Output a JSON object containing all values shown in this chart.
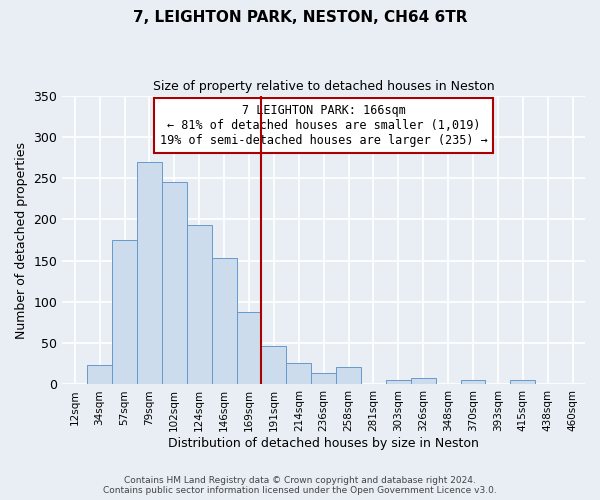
{
  "title": "7, LEIGHTON PARK, NESTON, CH64 6TR",
  "subtitle": "Size of property relative to detached houses in Neston",
  "xlabel": "Distribution of detached houses by size in Neston",
  "ylabel": "Number of detached properties",
  "bar_color": "#cddcec",
  "bar_edge_color": "#6699cc",
  "background_color": "#e8eef4",
  "categories": [
    "12sqm",
    "34sqm",
    "57sqm",
    "79sqm",
    "102sqm",
    "124sqm",
    "146sqm",
    "169sqm",
    "191sqm",
    "214sqm",
    "236sqm",
    "258sqm",
    "281sqm",
    "303sqm",
    "326sqm",
    "348sqm",
    "370sqm",
    "393sqm",
    "415sqm",
    "438sqm",
    "460sqm"
  ],
  "bar_heights": [
    0,
    24,
    175,
    270,
    245,
    193,
    153,
    88,
    47,
    26,
    14,
    21,
    0,
    6,
    8,
    0,
    5,
    0,
    5,
    0,
    0
  ],
  "ylim": [
    0,
    350
  ],
  "yticks": [
    0,
    50,
    100,
    150,
    200,
    250,
    300,
    350
  ],
  "vline_x": 7,
  "vline_color": "#aa0000",
  "annotation_title": "7 LEIGHTON PARK: 166sqm",
  "annotation_line1": "← 81% of detached houses are smaller (1,019)",
  "annotation_line2": "19% of semi-detached houses are larger (235) →",
  "annotation_box_color": "#ffffff",
  "annotation_box_edge_color": "#aa0000",
  "footer1": "Contains HM Land Registry data © Crown copyright and database right 2024.",
  "footer2": "Contains public sector information licensed under the Open Government Licence v3.0."
}
